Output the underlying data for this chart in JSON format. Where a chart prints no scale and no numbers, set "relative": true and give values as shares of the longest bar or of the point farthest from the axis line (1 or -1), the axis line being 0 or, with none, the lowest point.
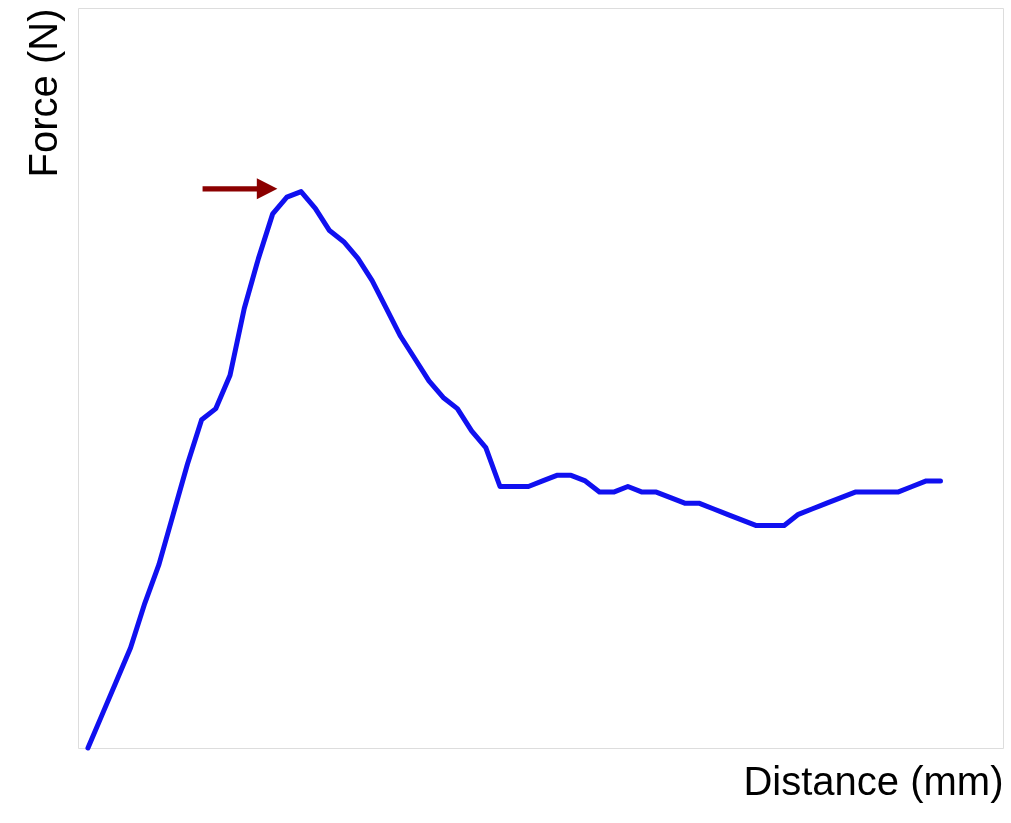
{
  "chart_data": {
    "type": "line",
    "relative": true,
    "xlabel": "Distance (mm)",
    "ylabel": "Force (N)",
    "categories": [
      null,
      null,
      null,
      null,
      null,
      null,
      null,
      null,
      null,
      null,
      null,
      null,
      null,
      null,
      null,
      null,
      null,
      null,
      null,
      null,
      null,
      null,
      null,
      null,
      null,
      null,
      null,
      null,
      null,
      null,
      null,
      null,
      null,
      null,
      null,
      null,
      null,
      null,
      null,
      null,
      null,
      null,
      null,
      null,
      null,
      null,
      null,
      null,
      null,
      null,
      null,
      null,
      null,
      null,
      null,
      null,
      null,
      null,
      null,
      null,
      null
    ],
    "series": [
      {
        "color": "#1010f0",
        "values": [
          0,
          0.06,
          0.12,
          0.18,
          0.26,
          0.33,
          0.42,
          0.51,
          0.59,
          0.61,
          0.67,
          0.79,
          0.88,
          0.96,
          0.99,
          1,
          0.97,
          0.93,
          0.91,
          0.88,
          0.84,
          0.79,
          0.74,
          0.7,
          0.66,
          0.63,
          0.61,
          0.57,
          0.54,
          0.47,
          0.47,
          0.47,
          0.48,
          0.49,
          0.49,
          0.48,
          0.46,
          0.46,
          0.47,
          0.46,
          0.46,
          0.45,
          0.44,
          0.44,
          0.43,
          0.42,
          0.41,
          0.4,
          0.4,
          0.4,
          0.42,
          0.43,
          0.44,
          0.45,
          0.46,
          0.46,
          0.46,
          0.46,
          0.47,
          0.48,
          0.48
        ]
      }
    ],
    "grid": false,
    "marker": "none",
    "line_style": "solid",
    "tick_labels": false
  }
}
